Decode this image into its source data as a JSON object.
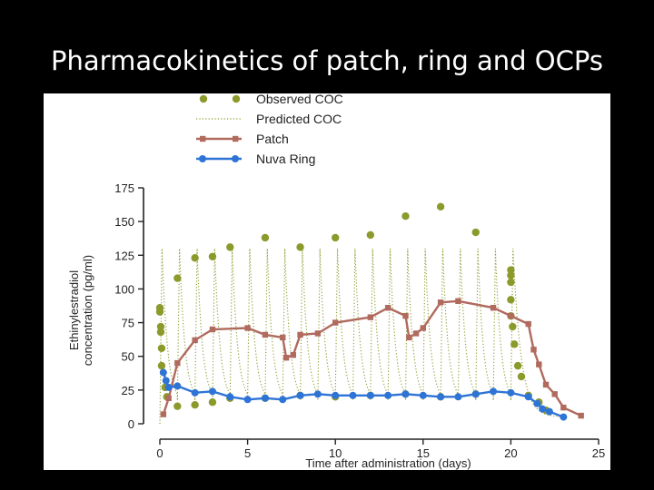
{
  "slide": {
    "title": "Pharmacokinetics of patch, ring and OCPs"
  },
  "colors": {
    "background": "#000000",
    "observed": "#8c9a2c",
    "predicted": "#8c9a2c",
    "patch": "#b06a5e",
    "ring": "#2e74d6",
    "axis": "#222222"
  },
  "chart_data": {
    "type": "line",
    "title": "",
    "xlabel": "Time after administration (days)",
    "ylabel": "Ethinylestradiol concentration (pg/ml)",
    "ylabel_lines": [
      "Ethinylestradiol",
      "concentration (pg/ml)"
    ],
    "xlim": [
      0,
      25
    ],
    "ylim": [
      0,
      175
    ],
    "xticks": [
      0,
      5,
      10,
      15,
      20,
      25
    ],
    "yticks": [
      0,
      25,
      50,
      75,
      100,
      125,
      150,
      175
    ],
    "grid": false,
    "legend_position": "top-left",
    "series": [
      {
        "name": "Observed COC",
        "style": "points",
        "points": [
          [
            0,
            86
          ],
          [
            0,
            83
          ],
          [
            0.05,
            72
          ],
          [
            0.05,
            68
          ],
          [
            0.1,
            56
          ],
          [
            0.1,
            43
          ],
          [
            0.3,
            27
          ],
          [
            0.4,
            20
          ],
          [
            1,
            108
          ],
          [
            1,
            13
          ],
          [
            2,
            123
          ],
          [
            2,
            14
          ],
          [
            3,
            124
          ],
          [
            3,
            16
          ],
          [
            4,
            131
          ],
          [
            4,
            19
          ],
          [
            6,
            138
          ],
          [
            6,
            19
          ],
          [
            8,
            131
          ],
          [
            8,
            21
          ],
          [
            10,
            138
          ],
          [
            10,
            20
          ],
          [
            12,
            140
          ],
          [
            12,
            21
          ],
          [
            14,
            154
          ],
          [
            14,
            22
          ],
          [
            16,
            161
          ],
          [
            16,
            20
          ],
          [
            18,
            142
          ],
          [
            18,
            22
          ],
          [
            20,
            114
          ],
          [
            20,
            110
          ],
          [
            20,
            105
          ],
          [
            20,
            92
          ],
          [
            20,
            80
          ],
          [
            20.1,
            72
          ],
          [
            20.2,
            59
          ],
          [
            20.4,
            43
          ],
          [
            20.6,
            35
          ],
          [
            21,
            21
          ],
          [
            21.6,
            16
          ],
          [
            22,
            10
          ]
        ]
      },
      {
        "name": "Predicted COC",
        "style": "dotted"
      },
      {
        "name": "Patch",
        "style": "line-square",
        "points": [
          [
            0.2,
            7
          ],
          [
            0.5,
            19
          ],
          [
            1,
            45
          ],
          [
            2,
            62
          ],
          [
            3,
            70
          ],
          [
            5,
            71
          ],
          [
            6,
            66
          ],
          [
            7,
            64
          ],
          [
            7.2,
            49
          ],
          [
            7.6,
            51
          ],
          [
            8,
            66
          ],
          [
            9,
            67
          ],
          [
            10,
            75
          ],
          [
            12,
            79
          ],
          [
            13,
            86
          ],
          [
            14,
            80
          ],
          [
            14.2,
            64
          ],
          [
            14.6,
            67
          ],
          [
            15,
            71
          ],
          [
            16,
            90
          ],
          [
            17,
            91
          ],
          [
            19,
            86
          ],
          [
            20,
            80
          ],
          [
            21,
            74
          ],
          [
            21.3,
            55
          ],
          [
            21.6,
            44
          ],
          [
            22,
            29
          ],
          [
            22.5,
            22
          ],
          [
            23,
            12
          ],
          [
            24,
            6
          ]
        ]
      },
      {
        "name": "Nuva Ring",
        "style": "line-circle",
        "points": [
          [
            0.2,
            38
          ],
          [
            0.35,
            32
          ],
          [
            0.5,
            27
          ],
          [
            1,
            28
          ],
          [
            2,
            23
          ],
          [
            3,
            24
          ],
          [
            4,
            20
          ],
          [
            5,
            18
          ],
          [
            6,
            19
          ],
          [
            7,
            18
          ],
          [
            8,
            21
          ],
          [
            9,
            22
          ],
          [
            10,
            21
          ],
          [
            11,
            21
          ],
          [
            12,
            21
          ],
          [
            13,
            21
          ],
          [
            14,
            22
          ],
          [
            15,
            21
          ],
          [
            16,
            20
          ],
          [
            17,
            20
          ],
          [
            18,
            22
          ],
          [
            19,
            24
          ],
          [
            20,
            23
          ],
          [
            21,
            20
          ],
          [
            21.5,
            15
          ],
          [
            21.8,
            11
          ],
          [
            22.2,
            9
          ],
          [
            23,
            5
          ]
        ]
      }
    ],
    "predicted_cycle": {
      "dose_days": [
        0,
        1,
        2,
        3,
        4,
        5,
        6,
        7,
        8,
        9,
        10,
        11,
        12,
        13,
        14,
        15,
        16,
        17,
        18,
        19,
        20
      ],
      "peak": 130,
      "trough": 15
    }
  }
}
